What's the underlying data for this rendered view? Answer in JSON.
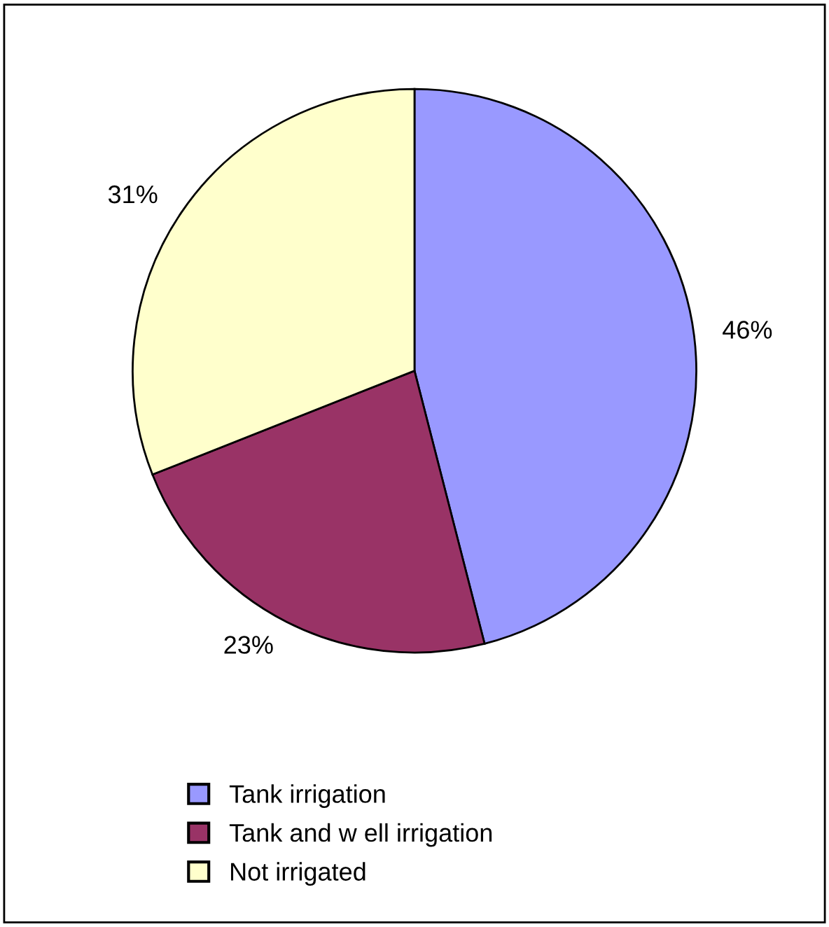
{
  "chart_data": {
    "type": "pie",
    "categories": [
      "Tank irrigation",
      "Tank and w ell irrigation",
      "Not irrigated"
    ],
    "values": [
      46,
      23,
      31
    ],
    "colors": [
      "#9999ff",
      "#993366",
      "#ffffcc"
    ],
    "value_labels": [
      "46%",
      "23%",
      "31%"
    ],
    "legend": "bottom left"
  }
}
